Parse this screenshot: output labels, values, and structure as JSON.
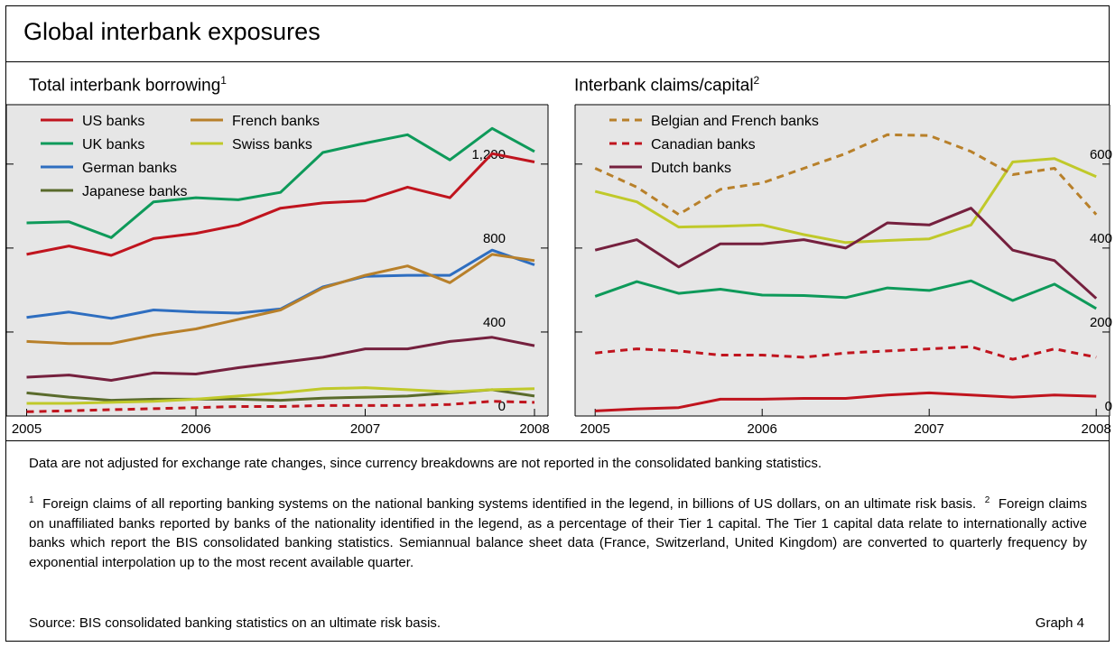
{
  "title": "Global interbank exposures",
  "colors": {
    "us": "#c0141e",
    "uk": "#0e9a5a",
    "german": "#2e6ec0",
    "japanese": "#5a6b2c",
    "french": "#b8802a",
    "swiss": "#c0c92a",
    "belgian_french": "#b8802a",
    "canadian": "#c0141e",
    "dutch": "#75203e",
    "panel_bg": "#e6e6e6"
  },
  "chart_data": [
    {
      "type": "line",
      "title": "Total interbank borrowing",
      "footnote_marker": "1",
      "x_ticks": [
        "2005",
        "2006",
        "2007",
        "2008"
      ],
      "y_ticks": [
        "0",
        "400",
        "800",
        "1,200"
      ],
      "ylim": [
        0,
        1440
      ],
      "x": [
        2005.0,
        2005.25,
        2005.5,
        2005.75,
        2006.0,
        2006.25,
        2006.5,
        2006.75,
        2007.0,
        2007.25,
        2007.5,
        2007.75,
        2008.0
      ],
      "series": [
        {
          "name": "US banks",
          "key": "us",
          "style": "solid",
          "values": [
            770,
            810,
            765,
            845,
            870,
            910,
            990,
            1015,
            1025,
            1090,
            1040,
            1250,
            1210
          ]
        },
        {
          "name": "UK banks",
          "key": "uk",
          "style": "solid",
          "values": [
            920,
            925,
            850,
            1020,
            1040,
            1030,
            1065,
            1255,
            1300,
            1340,
            1220,
            1370,
            1260
          ]
        },
        {
          "name": "German banks",
          "key": "german",
          "style": "solid",
          "values": [
            470,
            495,
            465,
            505,
            495,
            490,
            510,
            615,
            665,
            670,
            670,
            790,
            720
          ]
        },
        {
          "name": "Japanese banks",
          "key": "japanese",
          "style": "solid",
          "values": [
            110,
            90,
            75,
            80,
            80,
            80,
            75,
            85,
            90,
            95,
            110,
            125,
            95
          ]
        },
        {
          "name": "French banks",
          "key": "french",
          "style": "solid",
          "values": [
            355,
            345,
            345,
            385,
            415,
            460,
            505,
            610,
            670,
            715,
            635,
            770,
            740
          ]
        },
        {
          "name": "Swiss banks",
          "key": "swiss",
          "style": "solid",
          "values": [
            60,
            60,
            65,
            70,
            80,
            95,
            110,
            130,
            135,
            125,
            115,
            125,
            130
          ]
        }
      ],
      "extra_series": [
        {
          "name": "",
          "key": "dutch",
          "style": "solid",
          "values": [
            185,
            195,
            170,
            205,
            200,
            230,
            255,
            280,
            320,
            320,
            355,
            375,
            335
          ]
        },
        {
          "name": "",
          "key": "canadian",
          "style": "dashed",
          "values": [
            20,
            25,
            30,
            35,
            40,
            45,
            45,
            50,
            50,
            50,
            55,
            70,
            65
          ]
        }
      ],
      "legend": "top-left"
    },
    {
      "type": "line",
      "title": "Interbank claims/capital",
      "footnote_marker": "2",
      "x_ticks": [
        "2005",
        "2006",
        "2007",
        "2008"
      ],
      "y_ticks": [
        "0",
        "200",
        "400",
        "600"
      ],
      "ylim": [
        0,
        720
      ],
      "x": [
        2005.0,
        2005.25,
        2005.5,
        2005.75,
        2006.0,
        2006.25,
        2006.5,
        2006.75,
        2007.0,
        2007.25,
        2007.5,
        2007.75,
        2008.0
      ],
      "series": [
        {
          "name": "Belgian and French banks",
          "key": "belgian_french",
          "style": "dashed",
          "values": [
            590,
            545,
            480,
            540,
            555,
            590,
            625,
            670,
            668,
            630,
            575,
            590,
            480
          ]
        },
        {
          "name": "Canadian banks",
          "key": "canadian",
          "style": "dashed",
          "values": [
            150,
            160,
            155,
            145,
            145,
            140,
            150,
            155,
            160,
            165,
            135,
            160,
            140
          ]
        },
        {
          "name": "Dutch banks",
          "key": "dutch",
          "style": "solid",
          "values": [
            395,
            420,
            355,
            410,
            410,
            420,
            400,
            460,
            455,
            495,
            395,
            370,
            280
          ]
        }
      ],
      "extra_series": [
        {
          "name": "",
          "key": "swiss",
          "style": "solid",
          "values": [
            535,
            510,
            450,
            452,
            455,
            432,
            413,
            418,
            422,
            455,
            605,
            613,
            570
          ]
        },
        {
          "name": "",
          "key": "uk",
          "style": "solid",
          "values": [
            285,
            320,
            292,
            302,
            288,
            287,
            282,
            305,
            299,
            322,
            275,
            314,
            256
          ]
        },
        {
          "name": "",
          "key": "us",
          "style": "solid",
          "values": [
            12,
            17,
            20,
            40,
            40,
            42,
            42,
            50,
            55,
            50,
            45,
            50,
            47
          ]
        }
      ],
      "legend": "top-left"
    }
  ],
  "notes": {
    "general": "Data are not adjusted for exchange rate changes, since currency breakdowns are not reported in the consolidated banking statistics.",
    "fn1_marker": "1",
    "fn1": "Foreign claims of all reporting banking systems on the national banking systems identified in the legend, in billions of US dollars, on an ultimate risk basis.",
    "fn2_marker": "2",
    "fn2": "Foreign claims on unaffiliated banks reported by banks of the nationality identified in the legend, as a percentage of their Tier 1 capital. The Tier 1 capital data relate to internationally active banks which report the BIS consolidated banking statistics. Semiannual balance sheet data (France, Switzerland, United Kingdom) are converted to quarterly frequency by exponential interpolation up to the most recent available quarter."
  },
  "source": "Source: BIS consolidated banking statistics on an ultimate risk basis.",
  "graph_number": "Graph 4"
}
